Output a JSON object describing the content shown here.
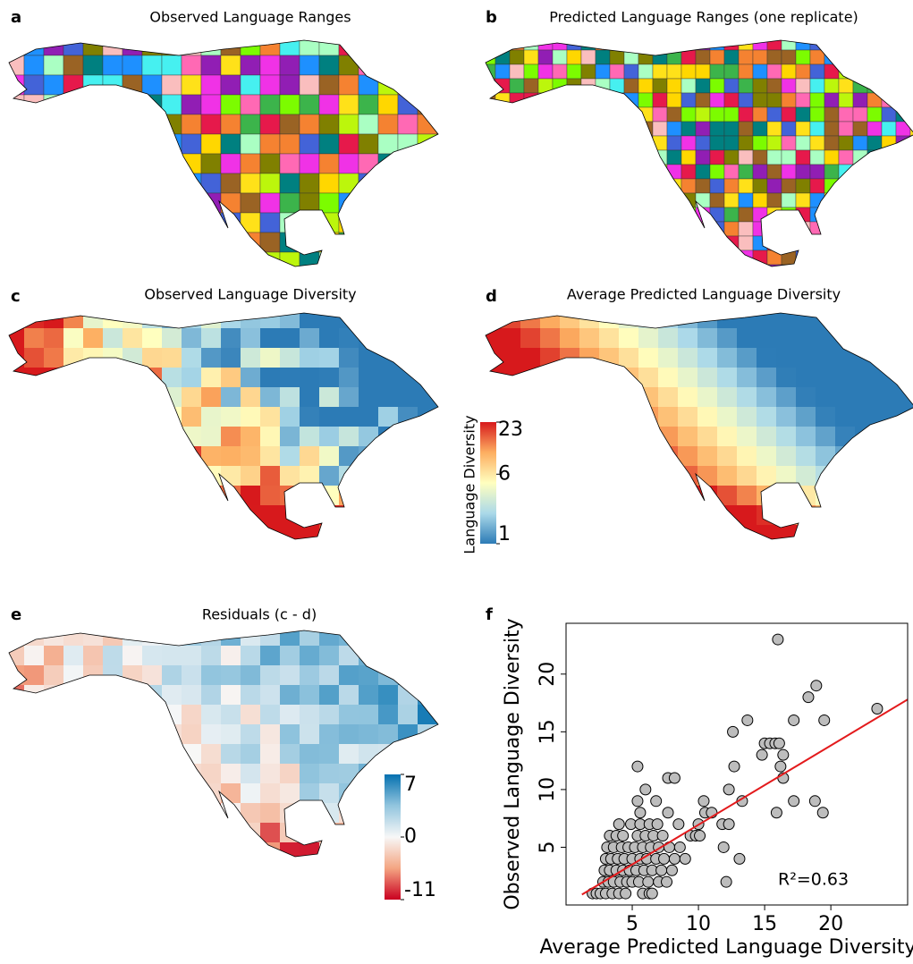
{
  "maps": [
    {
      "label": "a",
      "title": "Observed Language Ranges"
    },
    {
      "label": "b",
      "title": "Predicted Language Ranges (one replicate)"
    },
    {
      "label": "c",
      "title": "Observed Language Diversity"
    },
    {
      "label": "d",
      "title": "Average Predicted Language Diversity"
    },
    {
      "label": "e",
      "title": "Residuals (c - d)"
    }
  ],
  "diversity_colorbar": {
    "title": "Language Diversity",
    "ticks": [
      1,
      6,
      23
    ],
    "log": true,
    "colors": [
      "#2c7bb6",
      "#abd9e9",
      "#ffffbf",
      "#fdae61",
      "#d7191c"
    ]
  },
  "residual_colorbar": {
    "ticks": [
      -11,
      0,
      7
    ],
    "colors": [
      "#ca0020",
      "#f4a582",
      "#f7f7f7",
      "#92c5de",
      "#0571b0"
    ]
  },
  "chart_data": {
    "type": "scatter",
    "label": "f",
    "x_label": "Average Predicted Language Diversity",
    "y_label": "Observed Language Diversity",
    "annotation": "R²=0.63",
    "point_color": "#bdbdbd",
    "x": [
      2,
      2.3,
      2.6,
      3,
      3.5,
      4,
      4.5,
      5.8,
      6.3,
      2.8,
      3.2,
      3.6,
      4.1,
      4.6,
      5,
      5.5,
      6.2,
      7,
      7.6,
      2.9,
      3.3,
      3.8,
      4.3,
      4.8,
      5.3,
      5.9,
      6.5,
      7.2,
      8,
      3,
      3.4,
      3.9,
      4.4,
      5,
      5.6,
      6.1,
      6.8,
      7.4,
      8.2,
      9,
      3.1,
      3.6,
      4.2,
      4.7,
      5.2,
      5.8,
      6.4,
      7,
      7.8,
      8.6,
      3.3,
      3.8,
      4.3,
      5.4,
      6,
      6.6,
      7.3,
      9.4,
      9.8,
      10.1,
      4,
      4.9,
      5.6,
      6.3,
      6.9,
      8.5,
      10,
      11.8,
      12.3,
      5.6,
      7.7,
      10.5,
      11,
      15.9,
      19.4,
      5.4,
      6.8,
      10.4,
      13.3,
      17.2,
      18.8,
      6,
      12.3,
      7.7,
      8.2,
      16.4,
      5.4,
      12.7,
      16.2,
      14.8,
      16.4,
      15,
      15.4,
      15.8,
      16.1,
      12.6,
      13.7,
      17.2,
      19.5,
      23.5,
      18.3,
      18.9,
      16,
      11.9,
      13.1,
      12.1,
      6.5
    ],
    "values": [
      1,
      1,
      1,
      1,
      1,
      1,
      1,
      1,
      1,
      2,
      2,
      2,
      2,
      2,
      2,
      2,
      2,
      2,
      2,
      3,
      3,
      3,
      3,
      3,
      3,
      3,
      3,
      3,
      3,
      4,
      4,
      4,
      4,
      4,
      4,
      4,
      4,
      4,
      4,
      4,
      5,
      5,
      5,
      5,
      5,
      5,
      5,
      5,
      5,
      5,
      6,
      6,
      6,
      6,
      6,
      6,
      6,
      6,
      6,
      6,
      7,
      7,
      7,
      7,
      7,
      7,
      7,
      7,
      7,
      8,
      8,
      8,
      8,
      8,
      8,
      9,
      9,
      9,
      9,
      9,
      9,
      10,
      10,
      11,
      11,
      11,
      12,
      12,
      12,
      13,
      13,
      14,
      14,
      14,
      14,
      15,
      16,
      16,
      16,
      17,
      18,
      19,
      23,
      5,
      4,
      2,
      1
    ],
    "fit_line": {
      "x": [
        1.2,
        25.8
      ],
      "y": [
        0.9,
        17.8
      ],
      "color": "#e31a1c"
    },
    "xlim": [
      0,
      25.8
    ],
    "ylim": [
      0,
      24.4
    ],
    "xticks": [
      5,
      10,
      15,
      20
    ],
    "yticks": [
      5,
      10,
      15,
      20
    ]
  }
}
